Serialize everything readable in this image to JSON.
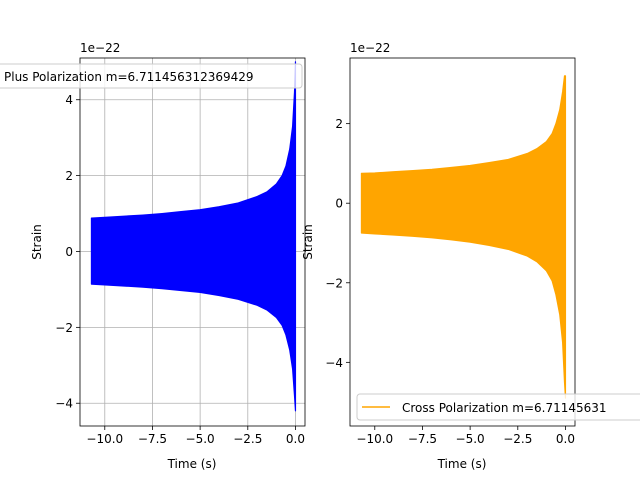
{
  "chart_data": [
    {
      "type": "line",
      "xlabel": "Time (s)",
      "ylabel": "Strain",
      "offset_text": "1e−22",
      "xlim": [
        -11.3,
        0.5
      ],
      "ylim": [
        -4.6,
        5.1
      ],
      "xticks": [
        -10.0,
        -7.5,
        -5.0,
        -2.5,
        0.0
      ],
      "xtick_labels": [
        "−10.0",
        "−7.5",
        "−5.0",
        "−2.5",
        "0.0"
      ],
      "yticks": [
        -4,
        -2,
        0,
        2,
        4
      ],
      "ytick_labels": [
        "−4",
        "−2",
        "0",
        "2",
        "4"
      ],
      "grid": true,
      "legend_position": "top-left",
      "series": [
        {
          "name": "Plus Polarization m=6.711456312369429",
          "color": "#0000ff",
          "envelope": {
            "t": [
              -10.7,
              -10.0,
              -9.0,
              -8.0,
              -7.0,
              -6.0,
              -5.0,
              -4.0,
              -3.0,
              -2.0,
              -1.5,
              -1.0,
              -0.7,
              -0.5,
              -0.3,
              -0.15,
              -0.05,
              0.0
            ],
            "upper": [
              0.88,
              0.9,
              0.93,
              0.96,
              1.0,
              1.05,
              1.1,
              1.18,
              1.28,
              1.45,
              1.57,
              1.78,
              2.0,
              2.25,
              2.7,
              3.3,
              4.2,
              5.0
            ],
            "lower": [
              -0.86,
              -0.88,
              -0.91,
              -0.94,
              -0.98,
              -1.03,
              -1.08,
              -1.16,
              -1.26,
              -1.42,
              -1.54,
              -1.74,
              -1.95,
              -2.2,
              -2.6,
              -3.1,
              -3.8,
              -4.2
            ]
          }
        }
      ]
    },
    {
      "type": "line",
      "xlabel": "Time (s)",
      "ylabel": "Strain",
      "offset_text": "1e−22",
      "xlim": [
        -11.3,
        0.5
      ],
      "ylim": [
        -5.6,
        3.65
      ],
      "xticks": [
        -10.0,
        -7.5,
        -5.0,
        -2.5,
        0.0
      ],
      "xtick_labels": [
        "−10.0",
        "−7.5",
        "−5.0",
        "−2.5",
        "0.0"
      ],
      "yticks": [
        -4,
        -2,
        0,
        2
      ],
      "ytick_labels": [
        "−4",
        "−2",
        "0",
        "2"
      ],
      "grid": false,
      "legend_position": "bottom-right",
      "series": [
        {
          "name": "Cross Polarization m=6.711456312369429",
          "legend_visible_text": "Cross Polarization m=6.71145631",
          "color": "#ffa500",
          "envelope": {
            "t": [
              -10.7,
              -10.0,
              -9.0,
              -8.0,
              -7.0,
              -6.0,
              -5.0,
              -4.0,
              -3.0,
              -2.0,
              -1.5,
              -1.0,
              -0.7,
              -0.5,
              -0.3,
              -0.15,
              -0.05,
              0.0
            ],
            "upper": [
              0.75,
              0.76,
              0.79,
              0.82,
              0.85,
              0.9,
              0.95,
              1.02,
              1.1,
              1.25,
              1.37,
              1.55,
              1.75,
              2.0,
              2.35,
              2.8,
              3.2,
              3.2
            ],
            "lower": [
              -0.75,
              -0.77,
              -0.8,
              -0.83,
              -0.87,
              -0.92,
              -0.98,
              -1.06,
              -1.16,
              -1.33,
              -1.47,
              -1.7,
              -1.95,
              -2.3,
              -2.8,
              -3.5,
              -4.5,
              -4.9
            ]
          }
        }
      ]
    }
  ]
}
